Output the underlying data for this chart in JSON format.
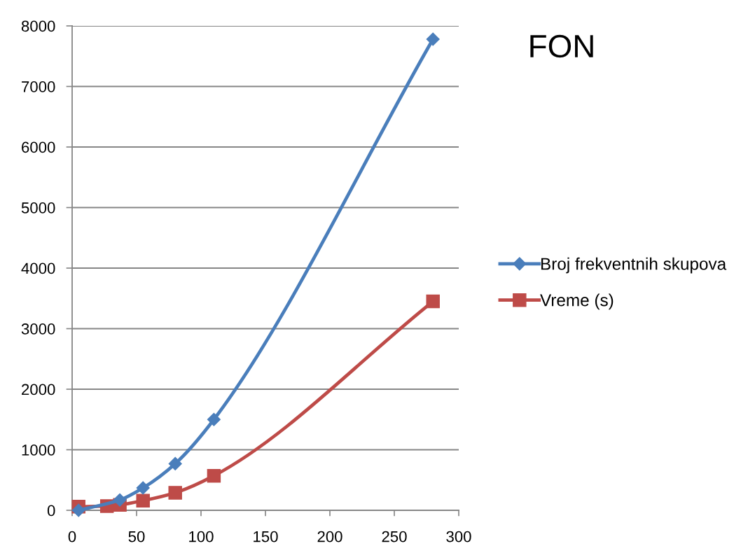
{
  "chart_data": {
    "type": "line",
    "title": "FON",
    "series": [
      {
        "name": "Broj frekventnih skupova",
        "color": "#4a7ebb",
        "marker": "diamond",
        "x": [
          5,
          37,
          55,
          80,
          110,
          280
        ],
        "values": [
          0,
          170,
          370,
          770,
          1500,
          7780
        ]
      },
      {
        "name": "Vreme (s)",
        "color": "#be4b48",
        "marker": "square",
        "x": [
          5,
          27,
          37,
          55,
          80,
          110,
          280
        ],
        "values": [
          60,
          70,
          90,
          160,
          290,
          570,
          3450
        ]
      }
    ],
    "xlim": [
      0,
      300
    ],
    "xticks": [
      0,
      50,
      100,
      150,
      200,
      250,
      300
    ],
    "ylim": [
      0,
      8000
    ],
    "yticks": [
      0,
      1000,
      2000,
      3000,
      4000,
      5000,
      6000,
      7000,
      8000
    ],
    "grid": "y",
    "legend": "right",
    "line_style": "solid"
  }
}
